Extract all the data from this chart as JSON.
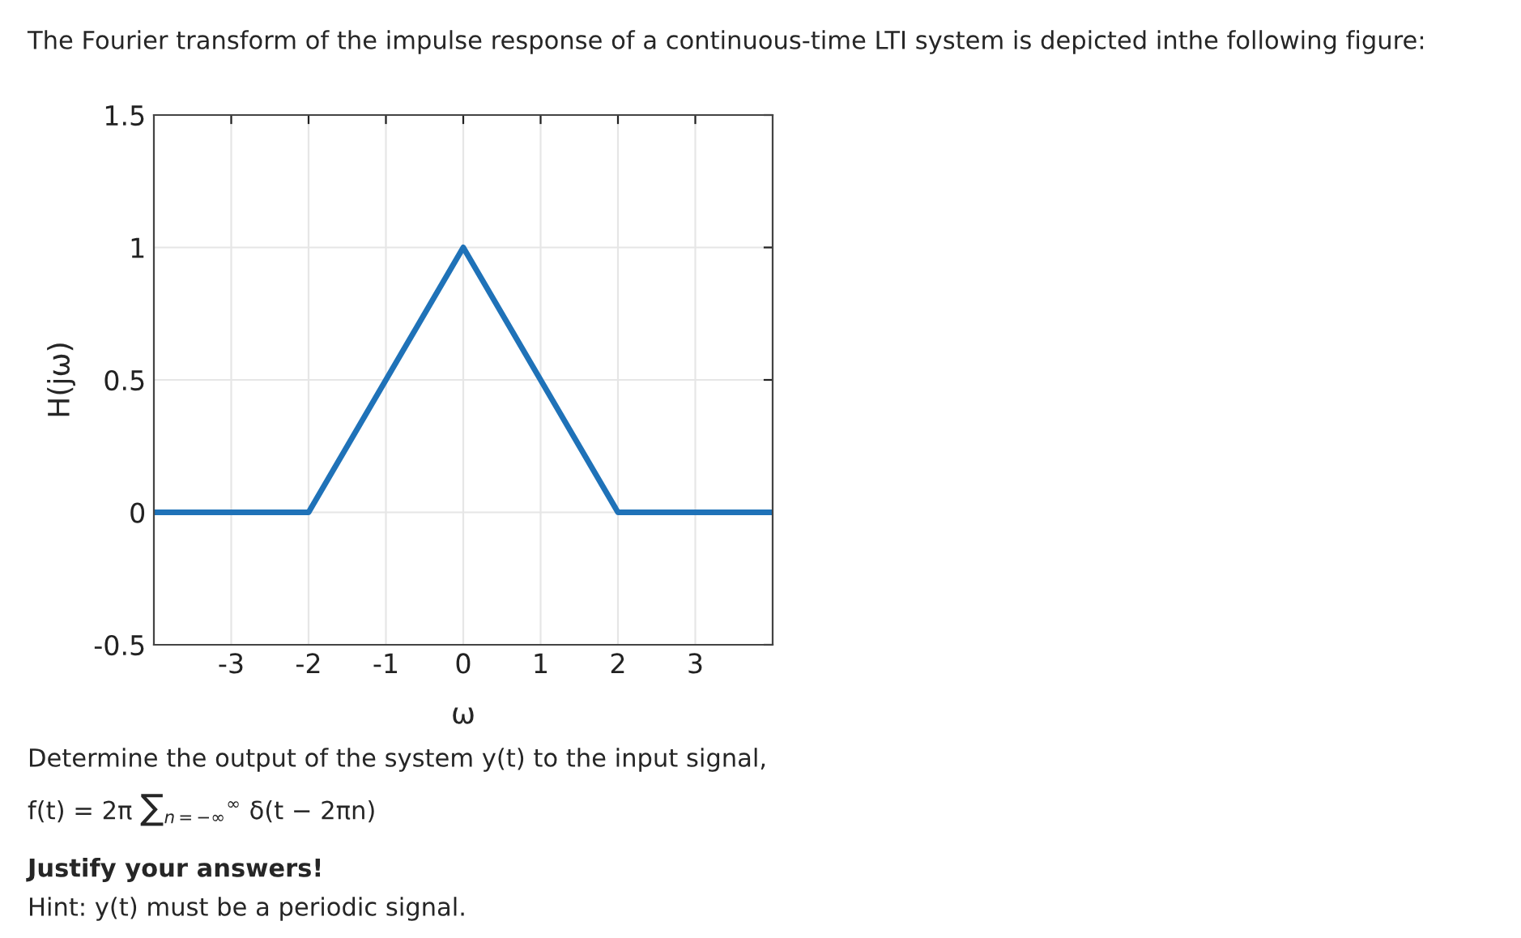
{
  "chart_data": {
    "type": "line",
    "title": "The Fourier transform of the impulse response of a continuous-time LTI system is depicted inthe following figure:",
    "xlabel": "ω",
    "ylabel": "H(jω)",
    "x": [
      -4,
      -2,
      0,
      2,
      4
    ],
    "series": [
      {
        "color": "#1f72b8",
        "values": [
          0,
          0,
          1,
          0,
          0
        ]
      }
    ],
    "xlim": [
      -4,
      4
    ],
    "xticks": [
      -3,
      -2,
      -1,
      0,
      1,
      2,
      3
    ],
    "ylim": [
      -0.5,
      1.5
    ],
    "yticks": [
      -0.5,
      0,
      0.5,
      1,
      1.5
    ],
    "grid": true,
    "marker": "none",
    "line_style": "solid",
    "annotations": [
      "Determine the output of the system y(t) to the input signal,",
      "f(t) = 2π ∑$_{n=−∞}$$^{∞}$ δ(t − 2πn)",
      "Justify your answers!",
      "Hint: y(t) must be a periodic signal."
    ]
  }
}
